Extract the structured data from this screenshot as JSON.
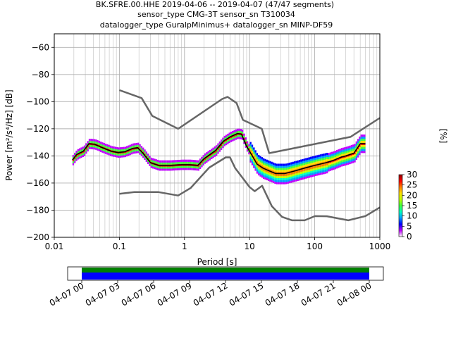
{
  "chart_data": {
    "type": "heatmap",
    "title_lines": [
      "BK.SFRE.00.HHE   2019-04-06 -- 2019-04-07  (47/47 segments)",
      "sensor_type CMG-3T sensor_sn T310034",
      "datalogger_type GuralpMinimus+ datalogger_sn MINP-DF59"
    ],
    "xlabel": "Period [s]",
    "ylabel": "Power [m²/s⁴/Hz] [dB]",
    "xscale": "log",
    "xlim": [
      0.01,
      1000
    ],
    "ylim": [
      -200,
      -50
    ],
    "xticks": [
      {
        "value": 0.01,
        "label": "0.01"
      },
      {
        "value": 0.1,
        "label": "0.1"
      },
      {
        "value": 1,
        "label": "1"
      },
      {
        "value": 10,
        "label": "10"
      },
      {
        "value": 100,
        "label": "100"
      },
      {
        "value": 1000,
        "label": "1000"
      }
    ],
    "yticks": [
      {
        "value": -60,
        "label": "−60"
      },
      {
        "value": -80,
        "label": "−80"
      },
      {
        "value": -100,
        "label": "−100"
      },
      {
        "value": -120,
        "label": "−120"
      },
      {
        "value": -140,
        "label": "−140"
      },
      {
        "value": -160,
        "label": "−160"
      },
      {
        "value": -180,
        "label": "−180"
      },
      {
        "value": -200,
        "label": "−200"
      }
    ],
    "grid": true,
    "series": [
      {
        "role": "new-high-noise-model",
        "color": "#666666",
        "points": [
          [
            0.1,
            -91.5
          ],
          [
            0.22,
            -97.4
          ],
          [
            0.32,
            -110.5
          ],
          [
            0.8,
            -120
          ],
          [
            3.8,
            -98
          ],
          [
            4.6,
            -96.5
          ],
          [
            6.3,
            -101
          ],
          [
            7.9,
            -113.5
          ],
          [
            15.4,
            -120
          ],
          [
            20,
            -138
          ],
          [
            354.8,
            -126
          ],
          [
            1000,
            -112
          ]
        ]
      },
      {
        "role": "new-low-noise-model",
        "color": "#666666",
        "points": [
          [
            0.1,
            -168
          ],
          [
            0.17,
            -166.7
          ],
          [
            0.4,
            -166.7
          ],
          [
            0.8,
            -169.2
          ],
          [
            1.24,
            -163.7
          ],
          [
            2.4,
            -148.6
          ],
          [
            4.3,
            -141.1
          ],
          [
            5.0,
            -141.1
          ],
          [
            6.0,
            -149
          ],
          [
            10,
            -163
          ],
          [
            12,
            -166
          ],
          [
            15.6,
            -162
          ],
          [
            21.9,
            -177
          ],
          [
            31.6,
            -185
          ],
          [
            45,
            -187.5
          ],
          [
            70,
            -187.5
          ],
          [
            101,
            -184.4
          ],
          [
            154,
            -184.5
          ],
          [
            328,
            -187.5
          ],
          [
            600,
            -184.4
          ],
          [
            1000,
            -178
          ]
        ]
      },
      {
        "role": "mean-psd",
        "color": "#000000",
        "points": [
          [
            0.019,
            -143
          ],
          [
            0.022,
            -139
          ],
          [
            0.028,
            -136.5
          ],
          [
            0.034,
            -131
          ],
          [
            0.042,
            -131.5
          ],
          [
            0.055,
            -134
          ],
          [
            0.075,
            -136.5
          ],
          [
            0.095,
            -137.5
          ],
          [
            0.12,
            -137
          ],
          [
            0.16,
            -134.5
          ],
          [
            0.19,
            -134
          ],
          [
            0.23,
            -138
          ],
          [
            0.3,
            -145
          ],
          [
            0.4,
            -147
          ],
          [
            0.6,
            -147
          ],
          [
            0.9,
            -146.5
          ],
          [
            1.2,
            -146.5
          ],
          [
            1.6,
            -147
          ],
          [
            2.0,
            -142
          ],
          [
            3.0,
            -136
          ],
          [
            4.0,
            -129
          ],
          [
            5.0,
            -126
          ],
          [
            6.5,
            -123.5
          ],
          [
            7.5,
            -124
          ],
          [
            9,
            -133
          ],
          [
            11,
            -140
          ],
          [
            13,
            -146
          ],
          [
            16,
            -149
          ],
          [
            20,
            -151
          ],
          [
            25,
            -153
          ],
          [
            35,
            -153
          ],
          [
            50,
            -151
          ],
          [
            70,
            -149
          ],
          [
            100,
            -147
          ],
          [
            150,
            -145
          ],
          [
            200,
            -143
          ],
          [
            250,
            -141
          ],
          [
            300,
            -140
          ],
          [
            400,
            -138
          ],
          [
            500,
            -131
          ],
          [
            600,
            -131
          ]
        ]
      }
    ],
    "histogram_band": {
      "colorbar_label": "[%]",
      "range": [
        0,
        30
      ],
      "ticks": [
        "0",
        "5",
        "10",
        "15",
        "20",
        "25",
        "30"
      ],
      "colors": [
        "#ffffff",
        "#c000ff",
        "#0000ff",
        "#00a0ff",
        "#00ffc0",
        "#40ff40",
        "#c0ff00",
        "#ffe000",
        "#ff8000",
        "#ff0000",
        "#900000"
      ]
    }
  },
  "timeline": {
    "ticks": [
      "04-07 00",
      "04-07 03",
      "04-07 06",
      "04-07 09",
      "04-07 12",
      "04-07 15",
      "04-07 18",
      "04-07 21",
      "04-08 00"
    ],
    "coverage_colors": [
      "#008000",
      "#0000ff"
    ]
  }
}
